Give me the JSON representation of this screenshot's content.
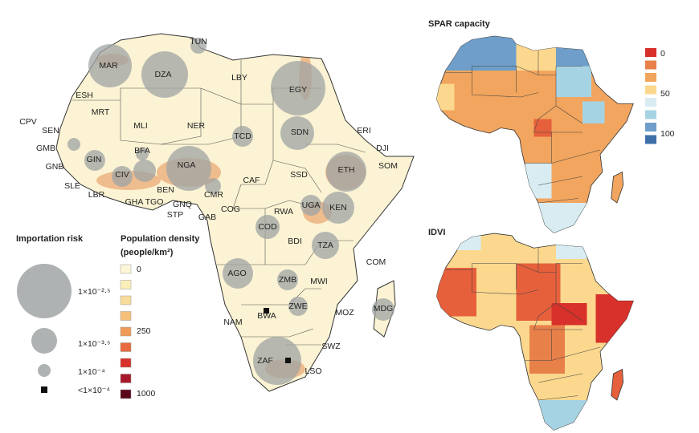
{
  "left_map": {
    "countries": [
      "TUN",
      "MAR",
      "DZA",
      "LBY",
      "EGY",
      "ESH",
      "MRT",
      "CPV",
      "SEN",
      "MLI",
      "NER",
      "TCD",
      "SDN",
      "ERI",
      "DJI",
      "GMB",
      "GNB",
      "GIN",
      "BFA",
      "NGA",
      "ETH",
      "SOM",
      "SLE",
      "LBR",
      "CIV",
      "GHA",
      "TGO",
      "BEN",
      "CMR",
      "CAF",
      "SSD",
      "GNQ",
      "STP",
      "GAB",
      "COG",
      "RWA",
      "UGA",
      "KEN",
      "COD",
      "BDI",
      "TZA",
      "COM",
      "AGO",
      "ZMB",
      "MWI",
      "ZWE",
      "MOZ",
      "MDG",
      "BWA",
      "NAM",
      "SWZ",
      "ZAF",
      "LSO"
    ]
  },
  "legend": {
    "importation_risk": {
      "title": "Importation risk",
      "labels": [
        "1×10⁻²·⁵",
        "1×10⁻³·⁵",
        "1×10⁻⁴",
        "<1×10⁻⁴"
      ]
    },
    "population_density": {
      "title": [
        "Population density",
        "(people/km²)"
      ],
      "labels": [
        "0",
        "250",
        "1000"
      ]
    }
  },
  "right_maps": [
    {
      "title": "SPAR capacity",
      "legend_labels": [
        "0",
        "50",
        "100"
      ]
    },
    {
      "title": "IDVI"
    }
  ]
}
